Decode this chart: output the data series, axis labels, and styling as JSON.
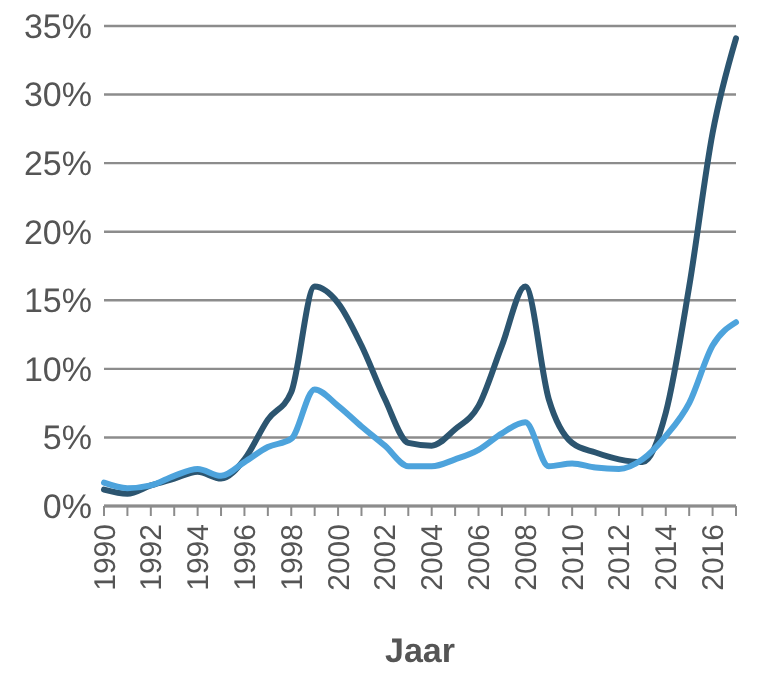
{
  "chart_data": {
    "type": "line",
    "xlabel": "Jaar",
    "x": [
      1990,
      1991,
      1992,
      1993,
      1994,
      1995,
      1996,
      1997,
      1998,
      1999,
      2000,
      2001,
      2002,
      2003,
      2004,
      2005,
      2006,
      2007,
      2008,
      2009,
      2010,
      2011,
      2012,
      2013,
      2014,
      2015,
      2016,
      2017
    ],
    "series": [
      {
        "color": "#2c5570",
        "values": [
          1.2,
          0.9,
          1.5,
          2.0,
          2.5,
          2.0,
          3.4,
          6.3,
          8.3,
          16.0,
          14.8,
          11.7,
          7.8,
          4.6,
          4.4,
          5.6,
          7.3,
          11.7,
          16.0,
          7.8,
          4.6,
          3.9,
          3.4,
          3.2,
          6.8,
          16.0,
          27.2,
          34.1
        ]
      },
      {
        "color": "#4da3dc",
        "values": [
          1.7,
          1.3,
          1.5,
          2.2,
          2.7,
          2.2,
          3.2,
          4.3,
          4.9,
          8.5,
          7.3,
          5.8,
          4.4,
          2.9,
          2.9,
          3.4,
          4.1,
          5.3,
          6.1,
          2.9,
          3.1,
          2.8,
          2.7,
          3.4,
          5.1,
          7.5,
          11.7,
          13.4
        ]
      }
    ],
    "xlim": [
      1990,
      2017
    ],
    "xticks": [
      1990,
      {
        "value": 1991,
        "label": null
      },
      1992,
      {
        "value": 1993,
        "label": null
      },
      1994,
      {
        "value": 1995,
        "label": null
      },
      1996,
      {
        "value": 1997,
        "label": null
      },
      1998,
      {
        "value": 1999,
        "label": null
      },
      2000,
      {
        "value": 2001,
        "label": null
      },
      2002,
      {
        "value": 2003,
        "label": null
      },
      2004,
      {
        "value": 2005,
        "label": null
      },
      2006,
      {
        "value": 2007,
        "label": null
      },
      2008,
      {
        "value": 2009,
        "label": null
      },
      2010,
      {
        "value": 2011,
        "label": null
      },
      2012,
      {
        "value": 2013,
        "label": null
      },
      2014,
      {
        "value": 2015,
        "label": null
      },
      2016,
      {
        "value": 2017,
        "label": null
      }
    ],
    "ylim": [
      0,
      35
    ],
    "yticks": [
      {
        "value": 0,
        "label": "0%"
      },
      {
        "value": 5,
        "label": "5%"
      },
      {
        "value": 10,
        "label": "10%"
      },
      {
        "value": 15,
        "label": "15%"
      },
      {
        "value": 20,
        "label": "20%"
      },
      {
        "value": 25,
        "label": "25%"
      },
      {
        "value": 30,
        "label": "30%"
      },
      {
        "value": 35,
        "label": "35%"
      }
    ],
    "grid": "y",
    "marker": "none",
    "line_style": "solid"
  }
}
